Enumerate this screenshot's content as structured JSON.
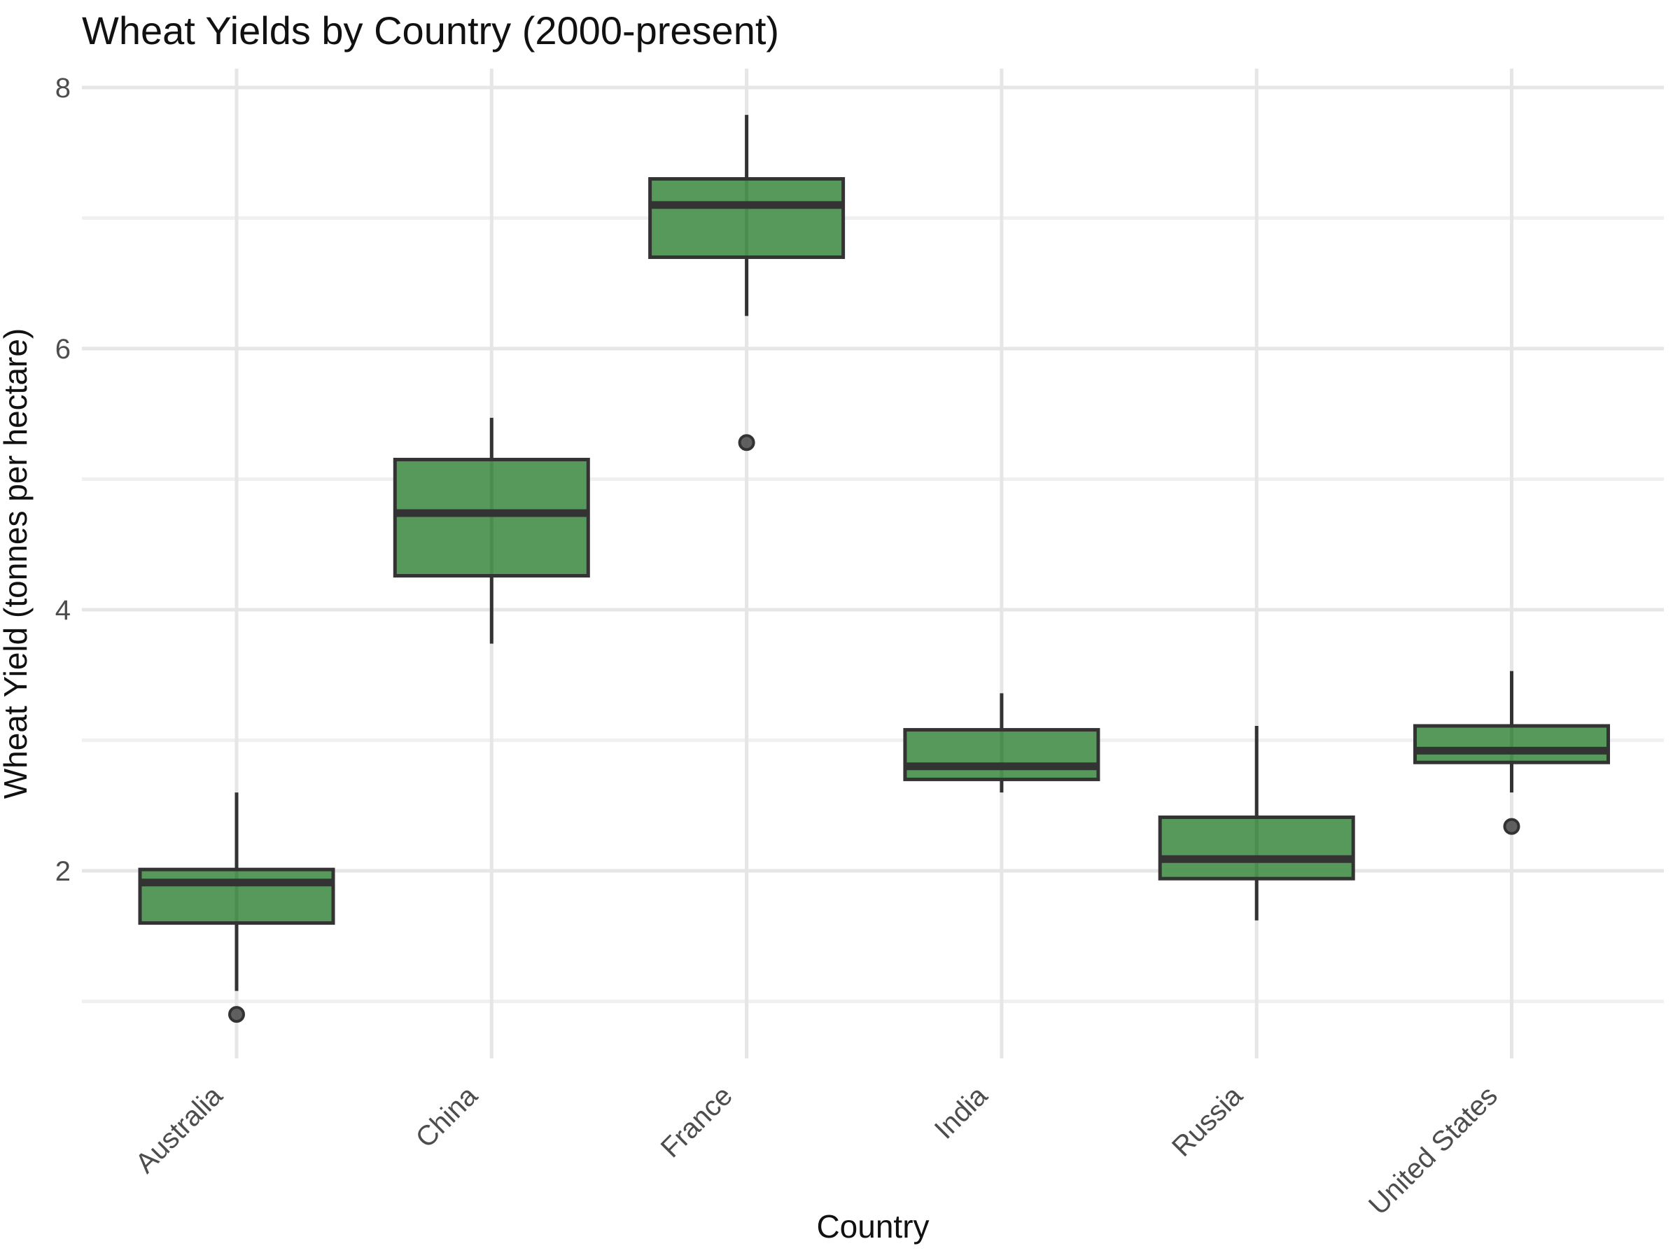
{
  "title": "Wheat Yields by Country (2000-present)",
  "axes": {
    "x_title": "Country",
    "y_title": "Wheat Yield (tonnes per hectare)",
    "y_tick_labels": [
      "2",
      "4",
      "6",
      "8"
    ],
    "y_tick_values": [
      2,
      4,
      6,
      8
    ],
    "y_minor_gridlines": [
      1,
      3,
      5,
      7
    ],
    "x_tick_labels": [
      "Australia",
      "China",
      "France",
      "India",
      "Russia",
      "United States"
    ]
  },
  "colors": {
    "box_fill": "#4d9351",
    "box_border": "#333333",
    "median": "#333333",
    "whisker": "#333333",
    "outlier_fill": "#4f4f4f",
    "outlier_border": "#333333",
    "gridline_major": "#e6e6e6",
    "gridline_minor": "#f0f0f0",
    "gridline_vertical": "#e6e6e6",
    "tick_text": "#4d4d4d",
    "title_text": "#111111",
    "background": "#ffffff"
  },
  "chart_data": {
    "type": "boxplot",
    "title": "Wheat Yields by Country (2000-present)",
    "xlabel": "Country",
    "ylabel": "Wheat Yield (tonnes per hectare)",
    "categories": [
      "Australia",
      "China",
      "France",
      "India",
      "Russia",
      "United States"
    ],
    "series": [
      {
        "name": "Australia",
        "whisker_low": 1.08,
        "q1": 1.6,
        "median": 1.91,
        "q3": 2.01,
        "whisker_high": 2.6,
        "outliers": [
          0.9
        ]
      },
      {
        "name": "China",
        "whisker_low": 3.74,
        "q1": 4.26,
        "median": 4.74,
        "q3": 5.15,
        "whisker_high": 5.47,
        "outliers": []
      },
      {
        "name": "France",
        "whisker_low": 6.25,
        "q1": 6.7,
        "median": 7.1,
        "q3": 7.3,
        "whisker_high": 7.79,
        "outliers": [
          5.28
        ]
      },
      {
        "name": "India",
        "whisker_low": 2.6,
        "q1": 2.7,
        "median": 2.8,
        "q3": 3.08,
        "whisker_high": 3.36,
        "outliers": []
      },
      {
        "name": "Russia",
        "whisker_low": 1.62,
        "q1": 1.94,
        "median": 2.09,
        "q3": 2.41,
        "whisker_high": 3.11,
        "outliers": []
      },
      {
        "name": "United States",
        "whisker_low": 2.6,
        "q1": 2.83,
        "median": 2.92,
        "q3": 3.11,
        "whisker_high": 3.53,
        "outliers": [
          2.34
        ]
      }
    ],
    "ylim": [
      0.56,
      8.15
    ],
    "grid": true,
    "legend": false
  }
}
